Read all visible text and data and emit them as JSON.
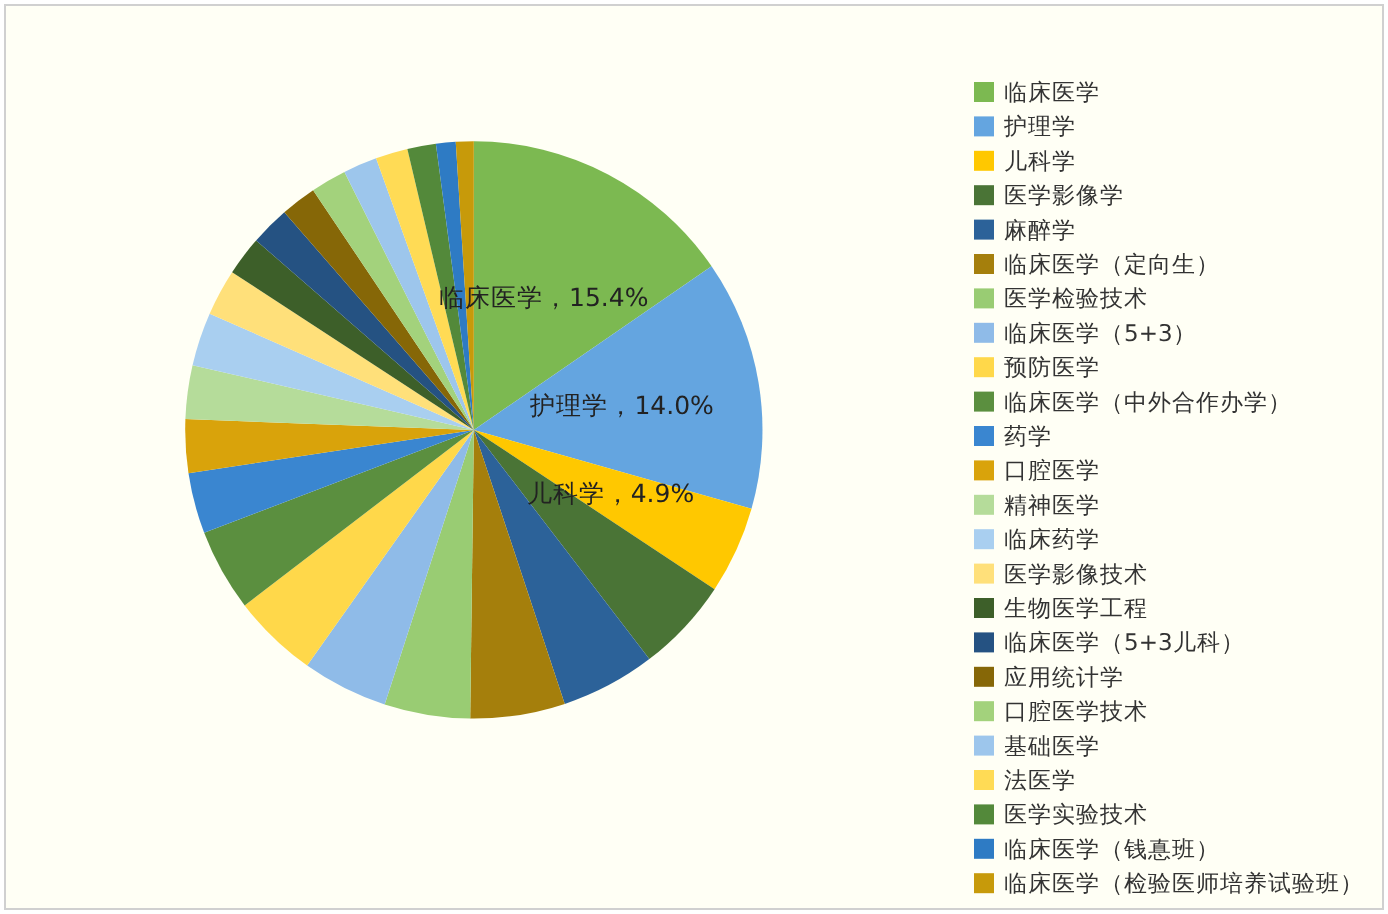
{
  "chart_data": {
    "type": "pie",
    "categories": [
      "临床医学",
      "护理学",
      "儿科学",
      "医学影像学",
      "麻醉学",
      "临床医学（定向生）",
      "医学检验技术",
      "临床医学（5+3）",
      "预防医学",
      "临床医学（中外合作办学）",
      "药学",
      "口腔医学",
      "精神医学",
      "临床药学",
      "医学影像技术",
      "生物医学工程",
      "临床医学（5+3儿科）",
      "应用统计学",
      "口腔医学技术",
      "基础医学",
      "法医学",
      "医学实验技术",
      "临床医学（钱惪班）",
      "临床医学（检验医师培养试验班）"
    ],
    "values": [
      15.4,
      14.0,
      4.9,
      5.3,
      5.3,
      5.3,
      4.8,
      4.8,
      4.8,
      4.6,
      3.4,
      3.0,
      3.0,
      3.0,
      2.6,
      2.2,
      2.2,
      2.0,
      2.0,
      1.9,
      1.8,
      1.6,
      1.1,
      1.0
    ],
    "value_labels": [
      "，15.4%",
      "，14.0%",
      "，4.9%",
      null,
      null,
      null,
      null,
      null,
      null,
      null,
      null,
      null,
      null,
      null,
      null,
      null,
      null,
      null,
      null,
      null,
      null,
      null,
      null,
      null
    ],
    "colors": [
      "#7cb951",
      "#64a5e0",
      "#ffc800",
      "#4a7436",
      "#2c6299",
      "#a57f0c",
      "#99cc73",
      "#8fbbe8",
      "#ffd84a",
      "#5b8f3f",
      "#3a86d0",
      "#d9a30b",
      "#b5dc9a",
      "#a9cff0",
      "#ffe07a",
      "#3d5f29",
      "#255282",
      "#866707",
      "#a3d27c",
      "#9dc6ec",
      "#ffdb55",
      "#53893a",
      "#2e7bc4",
      "#c79a0a"
    ],
    "legend": "right"
  }
}
